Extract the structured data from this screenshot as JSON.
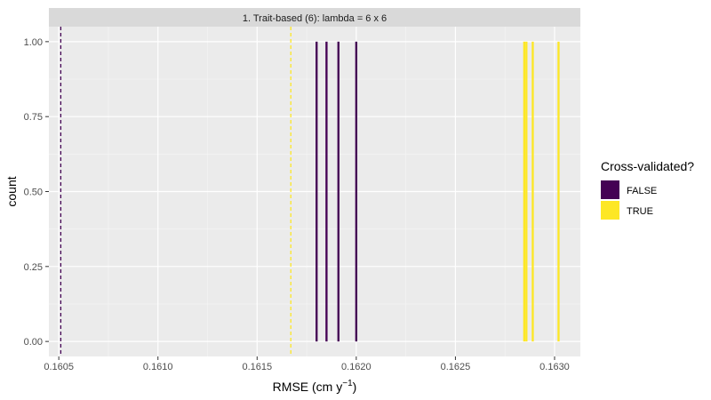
{
  "chart_data": {
    "type": "bar",
    "facet_title": "1. Trait-based (6): lambda = 6 x 6",
    "xlabel": "RMSE (cm y",
    "xlabel_sup": "−1",
    "xlabel_suffix": ")",
    "ylabel": "count",
    "xlim": [
      0.16045,
      0.16313
    ],
    "ylim": [
      -0.05,
      1.05
    ],
    "x_ticks": [
      0.1605,
      0.161,
      0.1615,
      0.162,
      0.1625,
      0.163
    ],
    "x_tick_labels": [
      "0.1605",
      "0.1610",
      "0.1615",
      "0.1620",
      "0.1625",
      "0.1630"
    ],
    "y_ticks": [
      0,
      0.25,
      0.5,
      0.75,
      1
    ],
    "y_tick_labels": [
      "0.00",
      "0.25",
      "0.50",
      "0.75",
      "1.00"
    ],
    "bar_width": 1.05e-05,
    "series": [
      {
        "name": "FALSE",
        "color": "#440154",
        "bars": [
          {
            "x": 0.1618,
            "count": 1
          },
          {
            "x": 0.16185,
            "count": 1
          },
          {
            "x": 0.16191,
            "count": 1
          },
          {
            "x": 0.162,
            "count": 1
          }
        ]
      },
      {
        "name": "TRUE",
        "color": "#FDE725",
        "bars": [
          {
            "x": 0.162847,
            "count": 1
          },
          {
            "x": 0.162858,
            "count": 1
          },
          {
            "x": 0.16289,
            "count": 1
          },
          {
            "x": 0.16302,
            "count": 1
          }
        ]
      }
    ],
    "reference_lines": [
      {
        "series": "FALSE",
        "x": 0.16051,
        "color": "#440154",
        "style": "dashed"
      },
      {
        "series": "TRUE",
        "x": 0.16167,
        "color": "#FDE725",
        "style": "dashed"
      }
    ],
    "legend": {
      "title": "Cross-validated?",
      "position": "right",
      "entries": [
        {
          "label": "FALSE",
          "color": "#440154"
        },
        {
          "label": "TRUE",
          "color": "#FDE725"
        }
      ]
    },
    "grid": true,
    "panel_background": "#EBEBEB",
    "strip_background": "#D9D9D9"
  }
}
